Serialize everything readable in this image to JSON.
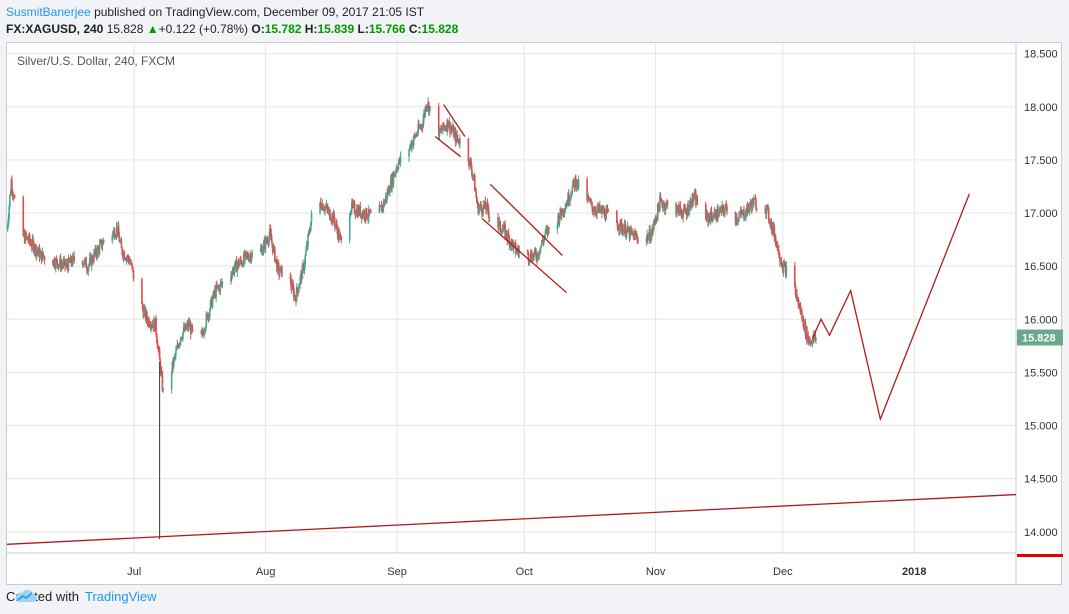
{
  "header": {
    "author": "SusmitBanerjee",
    "published_text": "published on TradingView.com, December 09, 2017 21:05 IST",
    "symbol": "FX:XAGUSD, 240",
    "last": "15.828",
    "change": "+0.122 (+0.78%)",
    "ohlc": {
      "o_label": "O:",
      "o": "15.782",
      "h_label": "H:",
      "h": "15.839",
      "l_label": "L:",
      "l": "15.766",
      "c_label": "C:",
      "c": "15.828"
    }
  },
  "footer": {
    "created_with": "Created with",
    "brand": "TradingView"
  },
  "colors": {
    "up": "#4aa58f",
    "down": "#e04b4b",
    "drawing": "#b01c1c",
    "grid": "#e6e6e6",
    "price_tag": "#6aa88b"
  },
  "chart_data": {
    "type": "candlestick",
    "title": "Silver/U.S. Dollar, 240, FXCM",
    "y_ticks": [
      14.0,
      14.5,
      15.0,
      15.5,
      16.0,
      16.5,
      17.0,
      17.5,
      18.0,
      18.5
    ],
    "y_tick_labels": [
      "14.000",
      "14.500",
      "15.000",
      "15.500",
      "16.000",
      "16.500",
      "17.000",
      "17.500",
      "18.000",
      "18.500"
    ],
    "ylim": [
      13.8,
      18.6
    ],
    "x_ticks": [
      "Jul",
      "Aug",
      "Sep",
      "Oct",
      "Nov",
      "Dec",
      "2018"
    ],
    "x_tick_dates": [
      "2017-07-01",
      "2017-08-01",
      "2017-09-01",
      "2017-10-01",
      "2017-11-01",
      "2017-12-01",
      "2018-01-01"
    ],
    "x_range": [
      "2017-06-01",
      "2018-01-25"
    ],
    "last_price_label": "15.828",
    "price_path": [
      [
        "2017-06-01",
        16.85
      ],
      [
        "2017-06-02",
        17.3
      ],
      [
        "2017-06-04",
        16.8
      ],
      [
        "2017-06-06",
        16.75
      ],
      [
        "2017-06-09",
        16.6
      ],
      [
        "2017-06-12",
        16.55
      ],
      [
        "2017-06-15",
        16.5
      ],
      [
        "2017-06-18",
        16.6
      ],
      [
        "2017-06-20",
        16.5
      ],
      [
        "2017-06-24",
        16.75
      ],
      [
        "2017-06-27",
        16.85
      ],
      [
        "2017-06-28",
        16.65
      ],
      [
        "2017-06-30",
        16.55
      ],
      [
        "2017-07-02",
        16.2
      ],
      [
        "2017-07-04",
        16.0
      ],
      [
        "2017-07-06",
        15.95
      ],
      [
        "2017-07-07",
        15.6
      ],
      [
        "2017-07-08",
        15.25
      ],
      [
        "2017-07-10",
        15.55
      ],
      [
        "2017-07-12",
        15.85
      ],
      [
        "2017-07-14",
        15.95
      ],
      [
        "2017-07-16",
        15.7
      ],
      [
        "2017-07-18",
        16.0
      ],
      [
        "2017-07-20",
        16.25
      ],
      [
        "2017-07-22",
        16.35
      ],
      [
        "2017-07-25",
        16.5
      ],
      [
        "2017-07-28",
        16.6
      ],
      [
        "2017-07-31",
        16.65
      ],
      [
        "2017-08-02",
        16.8
      ],
      [
        "2017-08-04",
        16.45
      ],
      [
        "2017-08-06",
        16.45
      ],
      [
        "2017-08-08",
        16.2
      ],
      [
        "2017-08-10",
        16.5
      ],
      [
        "2017-08-12",
        17.0
      ],
      [
        "2017-08-14",
        17.1
      ],
      [
        "2017-08-17",
        16.95
      ],
      [
        "2017-08-19",
        16.7
      ],
      [
        "2017-08-21",
        17.05
      ],
      [
        "2017-08-24",
        17.0
      ],
      [
        "2017-08-27",
        16.95
      ],
      [
        "2017-08-29",
        17.1
      ],
      [
        "2017-09-01",
        17.45
      ],
      [
        "2017-09-03",
        17.55
      ],
      [
        "2017-09-05",
        17.7
      ],
      [
        "2017-09-07",
        17.85
      ],
      [
        "2017-09-08",
        18.05
      ],
      [
        "2017-09-09",
        17.95
      ],
      [
        "2017-09-11",
        17.75
      ],
      [
        "2017-09-13",
        17.85
      ],
      [
        "2017-09-15",
        17.7
      ],
      [
        "2017-09-17",
        17.65
      ],
      [
        "2017-09-19",
        17.35
      ],
      [
        "2017-09-20",
        17.05
      ],
      [
        "2017-09-22",
        17.05
      ],
      [
        "2017-09-24",
        16.9
      ],
      [
        "2017-09-26",
        16.85
      ],
      [
        "2017-09-29",
        16.65
      ],
      [
        "2017-10-02",
        16.6
      ],
      [
        "2017-10-04",
        16.6
      ],
      [
        "2017-10-06",
        16.8
      ],
      [
        "2017-10-09",
        16.95
      ],
      [
        "2017-10-11",
        17.1
      ],
      [
        "2017-10-13",
        17.3
      ],
      [
        "2017-10-15",
        17.2
      ],
      [
        "2017-10-17",
        17.05
      ],
      [
        "2017-10-20",
        17.0
      ],
      [
        "2017-10-23",
        16.9
      ],
      [
        "2017-10-26",
        16.8
      ],
      [
        "2017-10-29",
        16.75
      ],
      [
        "2017-10-31",
        16.8
      ],
      [
        "2017-11-02",
        17.1
      ],
      [
        "2017-11-05",
        17.05
      ],
      [
        "2017-11-08",
        17.0
      ],
      [
        "2017-11-10",
        17.15
      ],
      [
        "2017-11-13",
        16.95
      ],
      [
        "2017-11-16",
        17.0
      ],
      [
        "2017-11-18",
        17.05
      ],
      [
        "2017-11-20",
        16.95
      ],
      [
        "2017-11-22",
        17.0
      ],
      [
        "2017-11-24",
        17.1
      ],
      [
        "2017-11-27",
        17.05
      ],
      [
        "2017-11-29",
        16.8
      ],
      [
        "2017-12-01",
        16.5
      ],
      [
        "2017-12-03",
        16.4
      ],
      [
        "2017-12-05",
        16.1
      ],
      [
        "2017-12-07",
        15.8
      ],
      [
        "2017-12-09",
        15.82
      ]
    ],
    "drawings": {
      "support_line": [
        [
          "2017-05-31",
          13.88
        ],
        [
          "2018-01-25",
          14.35
        ]
      ],
      "projection": [
        [
          "2017-12-08",
          15.82
        ],
        [
          "2017-12-10",
          16.0
        ],
        [
          "2017-12-12",
          15.85
        ],
        [
          "2017-12-17",
          16.27
        ],
        [
          "2017-12-24",
          15.06
        ],
        [
          "2018-01-14",
          17.18
        ]
      ],
      "flag1_upper": [
        [
          "2017-09-12",
          18.02
        ],
        [
          "2017-09-17",
          17.72
        ]
      ],
      "flag1_lower": [
        [
          "2017-09-10",
          17.72
        ],
        [
          "2017-09-16",
          17.53
        ]
      ],
      "channel_upper": [
        [
          "2017-09-23",
          17.27
        ],
        [
          "2017-10-10",
          16.6
        ]
      ],
      "channel_lower": [
        [
          "2017-09-21",
          16.95
        ],
        [
          "2017-10-11",
          16.25
        ]
      ]
    }
  }
}
